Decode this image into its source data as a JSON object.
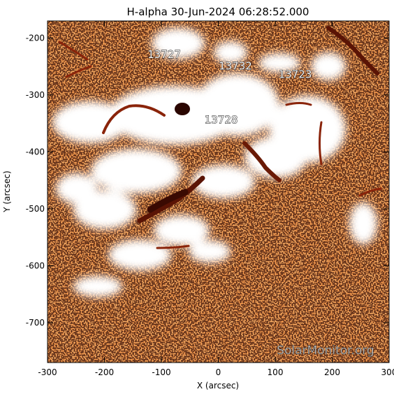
{
  "title": "H-alpha 30-Jun-2024 06:28:52.000",
  "xaxis": {
    "label": "X (arcsec)",
    "range": [
      -300,
      300
    ],
    "ticks": [
      {
        "value": -300,
        "label": "-300"
      },
      {
        "value": -200,
        "label": "-200"
      },
      {
        "value": -100,
        "label": "-100"
      },
      {
        "value": 0,
        "label": "0"
      },
      {
        "value": 100,
        "label": "100"
      },
      {
        "value": 200,
        "label": "200"
      },
      {
        "value": 300,
        "label": "300"
      }
    ]
  },
  "yaxis": {
    "label": "Y (arcsec)",
    "range": [
      -770,
      -170
    ],
    "ticks": [
      {
        "value": -200,
        "label": "-200"
      },
      {
        "value": -300,
        "label": "-300"
      },
      {
        "value": -400,
        "label": "-400"
      },
      {
        "value": -500,
        "label": "-500"
      },
      {
        "value": -600,
        "label": "-600"
      },
      {
        "value": -700,
        "label": "-700"
      }
    ]
  },
  "regions": [
    {
      "number": "13727",
      "x": -95,
      "y": -235
    },
    {
      "number": "13732",
      "x": 30,
      "y": -255
    },
    {
      "number": "13723",
      "x": 135,
      "y": -270
    },
    {
      "number": "13728",
      "x": 5,
      "y": -350
    }
  ],
  "watermark": "SolarMonitor.org",
  "colors": {
    "background": "#ffffff",
    "plage": "#ffffff",
    "chromosphere": "#e8661e",
    "chromosphere_light": "#f59a4e",
    "dark": "#3a0a02",
    "filament": "#7a1e08"
  }
}
